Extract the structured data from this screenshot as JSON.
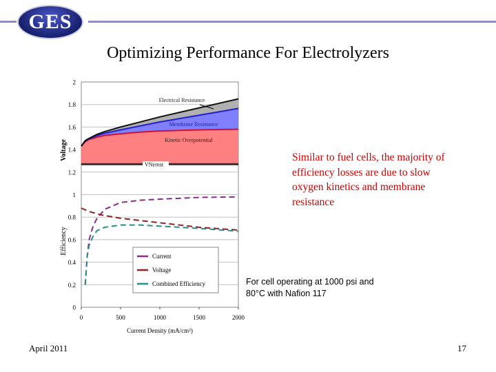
{
  "header": {
    "logo_text": "GES",
    "title": "Optimizing Performance For Electrolyzers"
  },
  "note": "Similar to fuel cells, the majority of efficiency losses are due to slow oxygen kinetics and membrane resistance",
  "conditions": [
    "For cell operating at 1000 psi and",
    "80°C with Nafion 117"
  ],
  "footer": {
    "date": "April 2011",
    "page": "17"
  },
  "colors": {
    "kinetic": "#ff8080",
    "membrane": "#8080ff",
    "electrical": "#b0b0b0",
    "current": "#8b2a8b",
    "voltage": "#8b2323",
    "combined": "#2a8b8b"
  },
  "chart_data": {
    "type": "area+line",
    "xlabel": "Current Density  (mA/cm²)",
    "xlim": [
      0,
      2000
    ],
    "xticks": [
      "0",
      "500",
      "1000",
      "1500",
      "2000"
    ],
    "ylim": [
      0,
      2
    ],
    "yticks": [
      "0",
      "0.2",
      "0.4",
      "0.6",
      "0.8",
      "1",
      "1.2",
      "1.4",
      "1.6",
      "1.8",
      "2"
    ],
    "ylabel_top": "Voltage",
    "ylabel_bottom": "Efficiency",
    "voltage_panel": {
      "x": [
        0,
        50,
        100,
        200,
        300,
        500,
        750,
        1000,
        1250,
        1500,
        1750,
        2000
      ],
      "nernst": {
        "name": "VNernst",
        "value": 1.27
      },
      "series": [
        {
          "name": "Kinetic Overpotential",
          "values": [
            1.43,
            1.47,
            1.49,
            1.51,
            1.525,
            1.54,
            1.555,
            1.565,
            1.57,
            1.575,
            1.578,
            1.58
          ]
        },
        {
          "name": "Membrane Resistance",
          "values": [
            1.43,
            1.475,
            1.495,
            1.525,
            1.545,
            1.575,
            1.61,
            1.645,
            1.675,
            1.705,
            1.735,
            1.765
          ]
        },
        {
          "name": "Electrical Resistance",
          "values": [
            1.43,
            1.48,
            1.5,
            1.535,
            1.56,
            1.6,
            1.645,
            1.69,
            1.73,
            1.77,
            1.81,
            1.85
          ]
        }
      ]
    },
    "efficiency_panel": {
      "legend": [
        "Current",
        "Voltage",
        "Combined Efficiency"
      ],
      "series": [
        {
          "name": "Current",
          "x": [
            50,
            75,
            100,
            150,
            200,
            300,
            500,
            750,
            1000,
            1500,
            2000
          ],
          "values": [
            0.2,
            0.45,
            0.6,
            0.72,
            0.79,
            0.87,
            0.93,
            0.95,
            0.96,
            0.975,
            0.98
          ]
        },
        {
          "name": "Voltage",
          "x": [
            0,
            100,
            250,
            500,
            1000,
            1500,
            2000
          ],
          "values": [
            0.88,
            0.85,
            0.82,
            0.79,
            0.75,
            0.71,
            0.685
          ]
        },
        {
          "name": "Combined Efficiency",
          "x": [
            50,
            75,
            100,
            150,
            200,
            300,
            500,
            750,
            1000,
            1500,
            2000
          ],
          "values": [
            0.2,
            0.45,
            0.55,
            0.63,
            0.68,
            0.71,
            0.73,
            0.73,
            0.72,
            0.7,
            0.675
          ]
        }
      ]
    }
  }
}
